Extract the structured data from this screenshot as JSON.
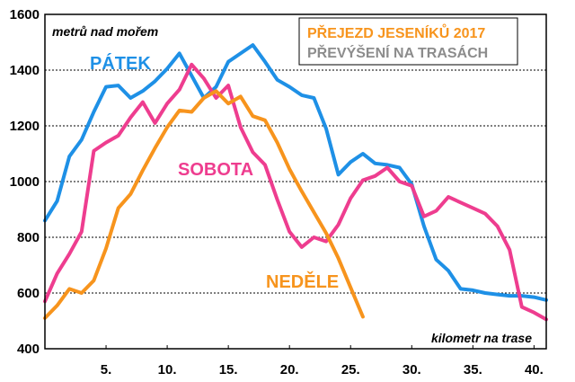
{
  "chart_data": {
    "type": "line",
    "title": "PŘEJEZD JESENÍKŮ 2017",
    "subtitle": "PŘEVÝŠENÍ NA TRASÁCH",
    "xlabel": "kilometr na trase",
    "ylabel": "metrů nad mořem",
    "xlim": [
      0,
      41
    ],
    "ylim": [
      400,
      1600
    ],
    "xticks": [
      5,
      10,
      15,
      20,
      25,
      30,
      35,
      40
    ],
    "xtick_labels": [
      "5.",
      "10.",
      "15.",
      "20.",
      "25.",
      "30.",
      "35.",
      "40."
    ],
    "yticks": [
      400,
      600,
      800,
      1000,
      1200,
      1400,
      1600
    ],
    "grid": "horizontal-dashed",
    "colors": {
      "title": "#f7941d",
      "subtitle": "#8c8c8c"
    },
    "series": [
      {
        "name": "PÁTEK",
        "color": "#1e90e6",
        "points": [
          [
            0,
            860
          ],
          [
            1,
            930
          ],
          [
            2,
            1090
          ],
          [
            3,
            1150
          ],
          [
            4,
            1250
          ],
          [
            5,
            1340
          ],
          [
            6,
            1345
          ],
          [
            7,
            1300
          ],
          [
            8,
            1325
          ],
          [
            9,
            1360
          ],
          [
            10,
            1405
          ],
          [
            11,
            1460
          ],
          [
            12,
            1380
          ],
          [
            13,
            1300
          ],
          [
            14,
            1340
          ],
          [
            15,
            1430
          ],
          [
            16,
            1460
          ],
          [
            17,
            1490
          ],
          [
            18,
            1430
          ],
          [
            19,
            1365
          ],
          [
            20,
            1340
          ],
          [
            21,
            1310
          ],
          [
            22,
            1300
          ],
          [
            23,
            1190
          ],
          [
            24,
            1025
          ],
          [
            25,
            1070
          ],
          [
            26,
            1100
          ],
          [
            27,
            1065
          ],
          [
            28,
            1060
          ],
          [
            29,
            1050
          ],
          [
            30,
            990
          ],
          [
            31,
            840
          ],
          [
            32,
            720
          ],
          [
            33,
            680
          ],
          [
            34,
            615
          ],
          [
            35,
            610
          ],
          [
            36,
            600
          ],
          [
            37,
            595
          ],
          [
            38,
            590
          ],
          [
            39,
            590
          ],
          [
            40,
            585
          ],
          [
            41,
            575
          ]
        ]
      },
      {
        "name": "SOBOTA",
        "color": "#ee3d8f",
        "points": [
          [
            0,
            570
          ],
          [
            1,
            670
          ],
          [
            2,
            740
          ],
          [
            3,
            820
          ],
          [
            4,
            1110
          ],
          [
            5,
            1140
          ],
          [
            6,
            1165
          ],
          [
            7,
            1230
          ],
          [
            8,
            1285
          ],
          [
            9,
            1210
          ],
          [
            10,
            1280
          ],
          [
            11,
            1330
          ],
          [
            12,
            1420
          ],
          [
            13,
            1370
          ],
          [
            14,
            1300
          ],
          [
            15,
            1345
          ],
          [
            16,
            1195
          ],
          [
            17,
            1105
          ],
          [
            18,
            1060
          ],
          [
            19,
            935
          ],
          [
            20,
            820
          ],
          [
            21,
            765
          ],
          [
            22,
            800
          ],
          [
            23,
            785
          ],
          [
            24,
            845
          ],
          [
            25,
            940
          ],
          [
            26,
            1005
          ],
          [
            27,
            1020
          ],
          [
            28,
            1050
          ],
          [
            29,
            1000
          ],
          [
            30,
            985
          ],
          [
            31,
            875
          ],
          [
            32,
            895
          ],
          [
            33,
            945
          ],
          [
            34,
            925
          ],
          [
            35,
            905
          ],
          [
            36,
            885
          ],
          [
            37,
            840
          ],
          [
            38,
            755
          ],
          [
            39,
            550
          ],
          [
            40,
            530
          ],
          [
            41,
            505
          ]
        ]
      },
      {
        "name": "NEDĚLE",
        "color": "#f7941d",
        "points": [
          [
            0,
            510
          ],
          [
            1,
            555
          ],
          [
            2,
            615
          ],
          [
            3,
            600
          ],
          [
            4,
            645
          ],
          [
            5,
            760
          ],
          [
            6,
            905
          ],
          [
            7,
            955
          ],
          [
            8,
            1040
          ],
          [
            9,
            1120
          ],
          [
            10,
            1195
          ],
          [
            11,
            1255
          ],
          [
            12,
            1250
          ],
          [
            13,
            1300
          ],
          [
            14,
            1325
          ],
          [
            15,
            1280
          ],
          [
            16,
            1305
          ],
          [
            17,
            1235
          ],
          [
            18,
            1220
          ],
          [
            19,
            1140
          ],
          [
            20,
            1045
          ],
          [
            21,
            965
          ],
          [
            22,
            890
          ],
          [
            23,
            815
          ],
          [
            24,
            725
          ],
          [
            25,
            620
          ],
          [
            26,
            515
          ]
        ]
      }
    ]
  }
}
